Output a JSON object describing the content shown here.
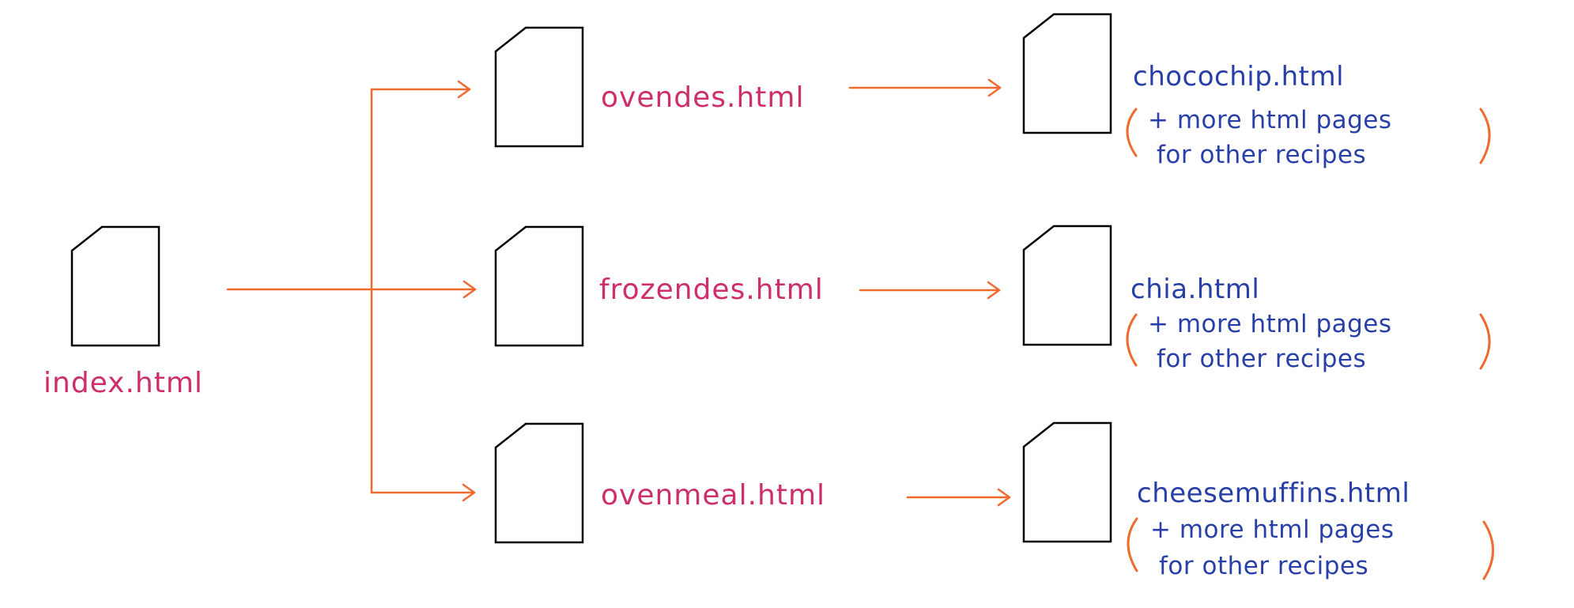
{
  "colors": {
    "label_pink": "#cc2f6a",
    "label_blue": "#283fa8",
    "arrow_orange": "#ee6a2e",
    "icon_stroke": "#000000"
  },
  "icons": {
    "document": "document-icon"
  },
  "root": {
    "label": "index.html"
  },
  "categories": [
    {
      "label": "ovendes.html",
      "recipe_label": "chocochip.html",
      "note": {
        "open_paren": "(",
        "line1": "+ more html pages",
        "line2": "for other recipes",
        "close_paren": ")"
      }
    },
    {
      "label": "frozendes.html",
      "recipe_label": "chia.html",
      "note": {
        "open_paren": "(",
        "line1": "+ more html pages",
        "line2": "for other recipes",
        "close_paren": ")"
      }
    },
    {
      "label": "ovenmeal.html",
      "recipe_label": "cheesemuffins.html",
      "note": {
        "open_paren": "(",
        "line1": "+ more html pages",
        "line2": "for other recipes",
        "close_paren": ")"
      }
    }
  ]
}
